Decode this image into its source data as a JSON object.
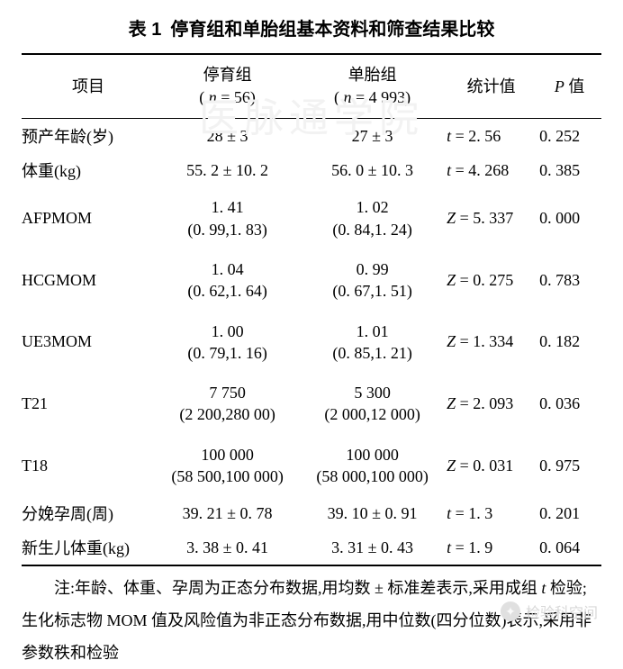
{
  "title_prefix": "表 1",
  "title_text": "停育组和单胎组基本资料和筛查结果比较",
  "header": {
    "item": "项目",
    "group1_line1": "停育组",
    "group1_line2": "( n = 56)",
    "group2_line1": "单胎组",
    "group2_line2": "( n = 4 993)",
    "stat": "统计值",
    "pval": "P 值"
  },
  "rows": [
    {
      "item": "预产年龄(岁)",
      "g1": "28 ± 3",
      "g2": "27 ± 3",
      "stat_sym": "t",
      "stat_val": " = 2. 56",
      "p": "0. 252",
      "twoline": false
    },
    {
      "item": "体重(kg)",
      "g1": "55. 2 ± 10. 2",
      "g2": "56. 0 ± 10. 3",
      "stat_sym": "t",
      "stat_val": " = 4. 268",
      "p": "0. 385",
      "twoline": false
    },
    {
      "item": "AFPMOM",
      "g1_l1": "1. 41",
      "g1_l2": "(0. 99,1. 83)",
      "g2_l1": "1. 02",
      "g2_l2": "(0. 84,1. 24)",
      "stat_sym": "Z",
      "stat_val": " = 5. 337",
      "p": "0. 000",
      "twoline": true
    },
    {
      "item": "HCGMOM",
      "g1_l1": "1. 04",
      "g1_l2": "(0. 62,1. 64)",
      "g2_l1": "0. 99",
      "g2_l2": "(0. 67,1. 51)",
      "stat_sym": "Z",
      "stat_val": " = 0. 275",
      "p": "0. 783",
      "twoline": true
    },
    {
      "item": "UE3MOM",
      "g1_l1": "1. 00",
      "g1_l2": "(0. 79,1. 16)",
      "g2_l1": "1. 01",
      "g2_l2": "(0. 85,1. 21)",
      "stat_sym": "Z",
      "stat_val": " = 1. 334",
      "p": "0. 182",
      "twoline": true
    },
    {
      "item": "T21",
      "g1_l1": "7 750",
      "g1_l2": "(2 200,280 00)",
      "g2_l1": "5 300",
      "g2_l2": "(2 000,12 000)",
      "stat_sym": "Z",
      "stat_val": " = 2. 093",
      "p": "0. 036",
      "twoline": true
    },
    {
      "item": "T18",
      "g1_l1": "100 000",
      "g1_l2": "(58 500,100 000)",
      "g2_l1": "100 000",
      "g2_l2": "(58 000,100 000)",
      "stat_sym": "Z",
      "stat_val": " = 0. 031",
      "p": "0. 975",
      "twoline": true
    },
    {
      "item": "分娩孕周(周)",
      "g1": "39. 21 ± 0. 78",
      "g2": "39. 10 ± 0. 91",
      "stat_sym": "t",
      "stat_val": " = 1. 3",
      "p": "0. 201",
      "twoline": false
    },
    {
      "item": "新生儿体重(kg)",
      "g1": "3. 38 ± 0. 41",
      "g2": "3. 31 ± 0. 43",
      "stat_sym": "t",
      "stat_val": " = 1. 9",
      "p": "0. 064",
      "twoline": false
    }
  ],
  "note_prefix": "注:",
  "note_part1": "年龄、体重、孕周为正态分布数据,用均数 ± 标准差表示,采用成组 ",
  "note_italic1": "t",
  "note_part2": " 检验;生化标志物 MOM 值及风险值为非正态分布数据,用中位数(四分位数)表示,采用非参数秩和检验",
  "watermark_text": "检验科空间",
  "bg_watermark": "医脉通学院"
}
